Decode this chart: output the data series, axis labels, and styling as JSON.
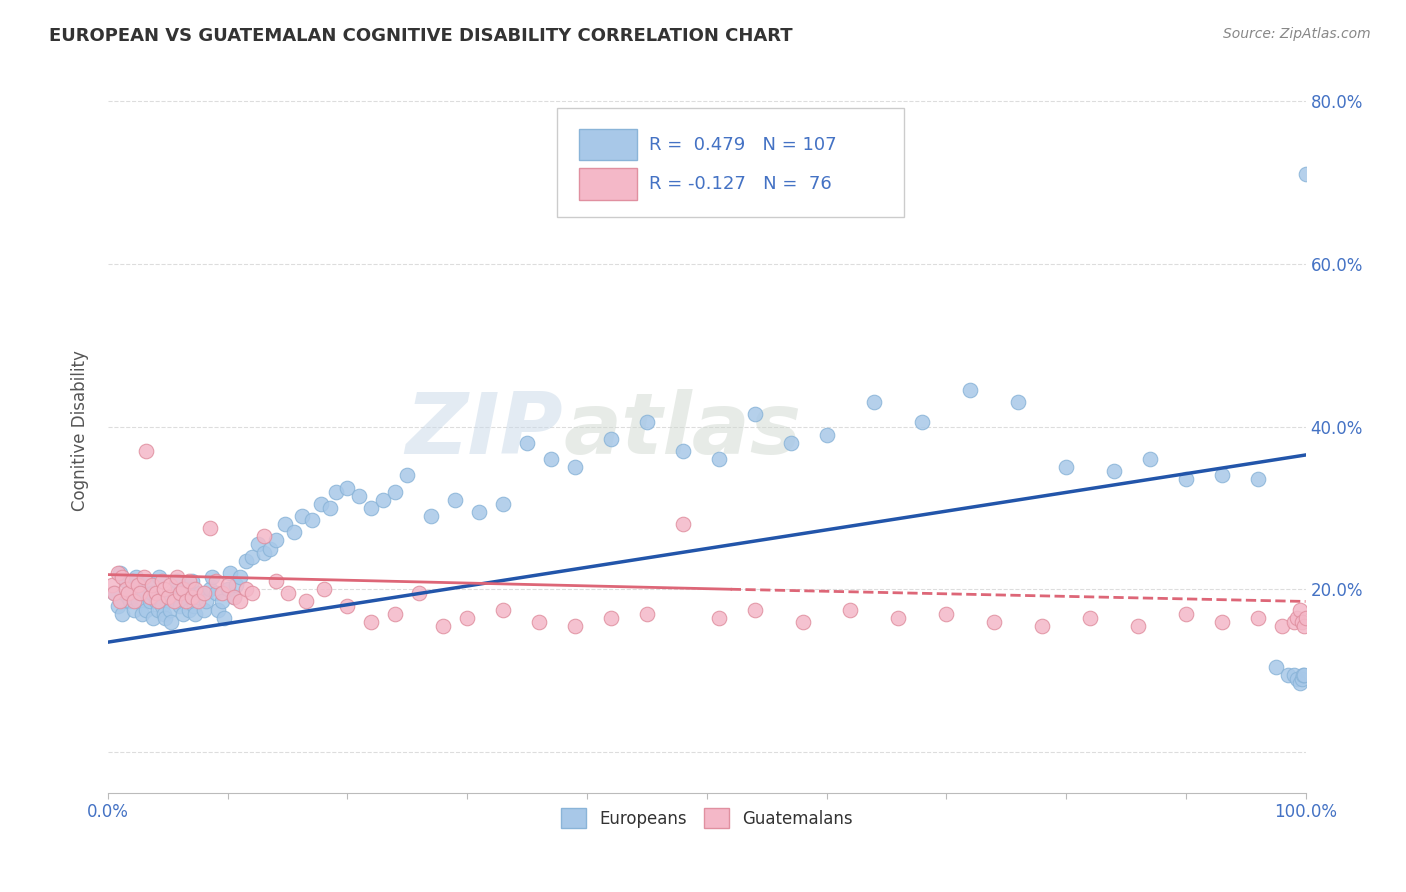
{
  "title": "EUROPEAN VS GUATEMALAN COGNITIVE DISABILITY CORRELATION CHART",
  "source": "Source: ZipAtlas.com",
  "ylabel": "Cognitive Disability",
  "xlim": [
    0.0,
    1.0
  ],
  "ylim": [
    -0.05,
    0.84
  ],
  "xtick_positions": [
    0.0,
    0.1,
    0.2,
    0.3,
    0.4,
    0.5,
    0.6,
    0.7,
    0.8,
    0.9,
    1.0
  ],
  "xtick_labels": [
    "0.0%",
    "",
    "",
    "",
    "",
    "",
    "",
    "",
    "",
    "",
    "100.0%"
  ],
  "ytick_positions": [
    0.0,
    0.2,
    0.4,
    0.6,
    0.8
  ],
  "ytick_labels": [
    "",
    "20.0%",
    "40.0%",
    "60.0%",
    "80.0%"
  ],
  "european_R": 0.479,
  "european_N": 107,
  "guatemalan_R": -0.127,
  "guatemalan_N": 76,
  "european_color": "#a8c8e8",
  "guatemalan_color": "#f4b8c8",
  "european_line_color": "#2255aa",
  "guatemalan_line_color": "#dd6677",
  "background_color": "#ffffff",
  "grid_color": "#dddddd",
  "watermark": "ZIPatlas",
  "eu_line_x0": 0.0,
  "eu_line_y0": 0.135,
  "eu_line_x1": 1.0,
  "eu_line_y1": 0.365,
  "gt_line_solid_x0": 0.0,
  "gt_line_solid_y0": 0.218,
  "gt_line_solid_x1": 0.52,
  "gt_line_solid_y1": 0.2,
  "gt_line_dash_x0": 0.52,
  "gt_line_dash_y0": 0.2,
  "gt_line_dash_x1": 1.0,
  "gt_line_dash_y1": 0.185,
  "eu_x": [
    0.005,
    0.008,
    0.01,
    0.012,
    0.015,
    0.017,
    0.018,
    0.02,
    0.022,
    0.023,
    0.025,
    0.027,
    0.028,
    0.03,
    0.032,
    0.033,
    0.035,
    0.037,
    0.038,
    0.04,
    0.042,
    0.043,
    0.045,
    0.047,
    0.048,
    0.05,
    0.052,
    0.053,
    0.055,
    0.057,
    0.058,
    0.06,
    0.062,
    0.063,
    0.065,
    0.067,
    0.068,
    0.07,
    0.072,
    0.073,
    0.075,
    0.077,
    0.08,
    0.082,
    0.085,
    0.087,
    0.09,
    0.092,
    0.095,
    0.097,
    0.1,
    0.102,
    0.105,
    0.107,
    0.11,
    0.115,
    0.12,
    0.125,
    0.13,
    0.135,
    0.14,
    0.148,
    0.155,
    0.162,
    0.17,
    0.178,
    0.185,
    0.19,
    0.2,
    0.21,
    0.22,
    0.23,
    0.24,
    0.25,
    0.27,
    0.29,
    0.31,
    0.33,
    0.35,
    0.37,
    0.39,
    0.42,
    0.45,
    0.48,
    0.51,
    0.54,
    0.57,
    0.6,
    0.64,
    0.68,
    0.72,
    0.76,
    0.8,
    0.84,
    0.87,
    0.9,
    0.93,
    0.96,
    0.975,
    0.985,
    0.99,
    0.993,
    0.995,
    0.997,
    0.998,
    0.999,
    1.0
  ],
  "eu_y": [
    0.195,
    0.18,
    0.22,
    0.17,
    0.21,
    0.19,
    0.185,
    0.2,
    0.175,
    0.215,
    0.185,
    0.205,
    0.17,
    0.195,
    0.175,
    0.21,
    0.185,
    0.195,
    0.165,
    0.185,
    0.175,
    0.215,
    0.18,
    0.17,
    0.165,
    0.19,
    0.175,
    0.16,
    0.195,
    0.185,
    0.21,
    0.18,
    0.195,
    0.17,
    0.185,
    0.2,
    0.175,
    0.21,
    0.18,
    0.17,
    0.19,
    0.195,
    0.175,
    0.185,
    0.2,
    0.215,
    0.195,
    0.175,
    0.185,
    0.165,
    0.2,
    0.22,
    0.19,
    0.205,
    0.215,
    0.235,
    0.24,
    0.255,
    0.245,
    0.25,
    0.26,
    0.28,
    0.27,
    0.29,
    0.285,
    0.305,
    0.3,
    0.32,
    0.325,
    0.315,
    0.3,
    0.31,
    0.32,
    0.34,
    0.29,
    0.31,
    0.295,
    0.305,
    0.38,
    0.36,
    0.35,
    0.385,
    0.405,
    0.37,
    0.36,
    0.415,
    0.38,
    0.39,
    0.43,
    0.405,
    0.445,
    0.43,
    0.35,
    0.345,
    0.36,
    0.335,
    0.34,
    0.335,
    0.105,
    0.095,
    0.095,
    0.09,
    0.085,
    0.09,
    0.095,
    0.095,
    0.71
  ],
  "gt_x": [
    0.003,
    0.005,
    0.008,
    0.01,
    0.012,
    0.015,
    0.017,
    0.02,
    0.022,
    0.025,
    0.027,
    0.03,
    0.032,
    0.035,
    0.037,
    0.04,
    0.042,
    0.045,
    0.047,
    0.05,
    0.052,
    0.055,
    0.058,
    0.06,
    0.063,
    0.065,
    0.068,
    0.07,
    0.073,
    0.075,
    0.08,
    0.085,
    0.09,
    0.095,
    0.1,
    0.105,
    0.11,
    0.115,
    0.12,
    0.13,
    0.14,
    0.15,
    0.165,
    0.18,
    0.2,
    0.22,
    0.24,
    0.26,
    0.28,
    0.3,
    0.33,
    0.36,
    0.39,
    0.42,
    0.45,
    0.48,
    0.51,
    0.54,
    0.58,
    0.62,
    0.66,
    0.7,
    0.74,
    0.78,
    0.82,
    0.86,
    0.9,
    0.93,
    0.96,
    0.98,
    0.99,
    0.993,
    0.995,
    0.997,
    0.999,
    1.0
  ],
  "gt_y": [
    0.205,
    0.195,
    0.22,
    0.185,
    0.215,
    0.2,
    0.195,
    0.21,
    0.185,
    0.205,
    0.195,
    0.215,
    0.37,
    0.19,
    0.205,
    0.195,
    0.185,
    0.21,
    0.2,
    0.19,
    0.205,
    0.185,
    0.215,
    0.195,
    0.2,
    0.185,
    0.21,
    0.19,
    0.2,
    0.185,
    0.195,
    0.275,
    0.21,
    0.195,
    0.205,
    0.19,
    0.185,
    0.2,
    0.195,
    0.265,
    0.21,
    0.195,
    0.185,
    0.2,
    0.18,
    0.16,
    0.17,
    0.195,
    0.155,
    0.165,
    0.175,
    0.16,
    0.155,
    0.165,
    0.17,
    0.28,
    0.165,
    0.175,
    0.16,
    0.175,
    0.165,
    0.17,
    0.16,
    0.155,
    0.165,
    0.155,
    0.17,
    0.16,
    0.165,
    0.155,
    0.16,
    0.165,
    0.175,
    0.16,
    0.155,
    0.165
  ]
}
